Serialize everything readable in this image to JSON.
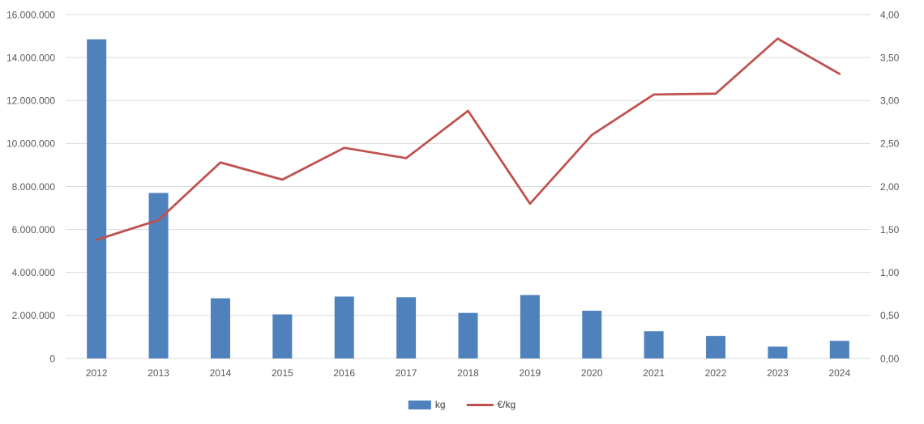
{
  "chart_data": {
    "type": "bar",
    "subtype": "combo-bar-line-dual-axis",
    "title": "",
    "xlabel": "",
    "ylabel_left": "",
    "ylabel_right": "",
    "grid": true,
    "legend_position": "bottom",
    "categories": [
      "2012",
      "2013",
      "2014",
      "2015",
      "2016",
      "2017",
      "2018",
      "2019",
      "2020",
      "2021",
      "2022",
      "2023",
      "2024"
    ],
    "series": [
      {
        "name": "kg",
        "type": "bar",
        "axis": "left",
        "color": "#4F81BD",
        "values": [
          14850000,
          7700000,
          2800000,
          2050000,
          2880000,
          2850000,
          2120000,
          2950000,
          2220000,
          1270000,
          1050000,
          550000,
          820000
        ]
      },
      {
        "name": "€/kg",
        "type": "line",
        "axis": "right",
        "color": "#C0504D",
        "values": [
          1.38,
          1.61,
          2.28,
          2.08,
          2.45,
          2.33,
          2.88,
          1.8,
          2.6,
          3.07,
          3.08,
          3.72,
          3.31
        ]
      }
    ],
    "y_left": {
      "min": 0,
      "max": 16000000,
      "step": 2000000,
      "tick_labels": [
        "0",
        "2.000.000",
        "4.000.000",
        "6.000.000",
        "8.000.000",
        "10.000.000",
        "12.000.000",
        "14.000.000",
        "16.000.000"
      ]
    },
    "y_right": {
      "min": 0,
      "max": 4,
      "step": 0.5,
      "tick_labels": [
        "0,00",
        "0,50",
        "1,00",
        "1,50",
        "2,00",
        "2,50",
        "3,00",
        "3,50",
        "4,00"
      ]
    }
  },
  "colors": {
    "bar": "#4F81BD",
    "line": "#C0504D",
    "grid": "#D9D9D9",
    "axis_text": "#595959",
    "background": "#FFFFFF"
  }
}
